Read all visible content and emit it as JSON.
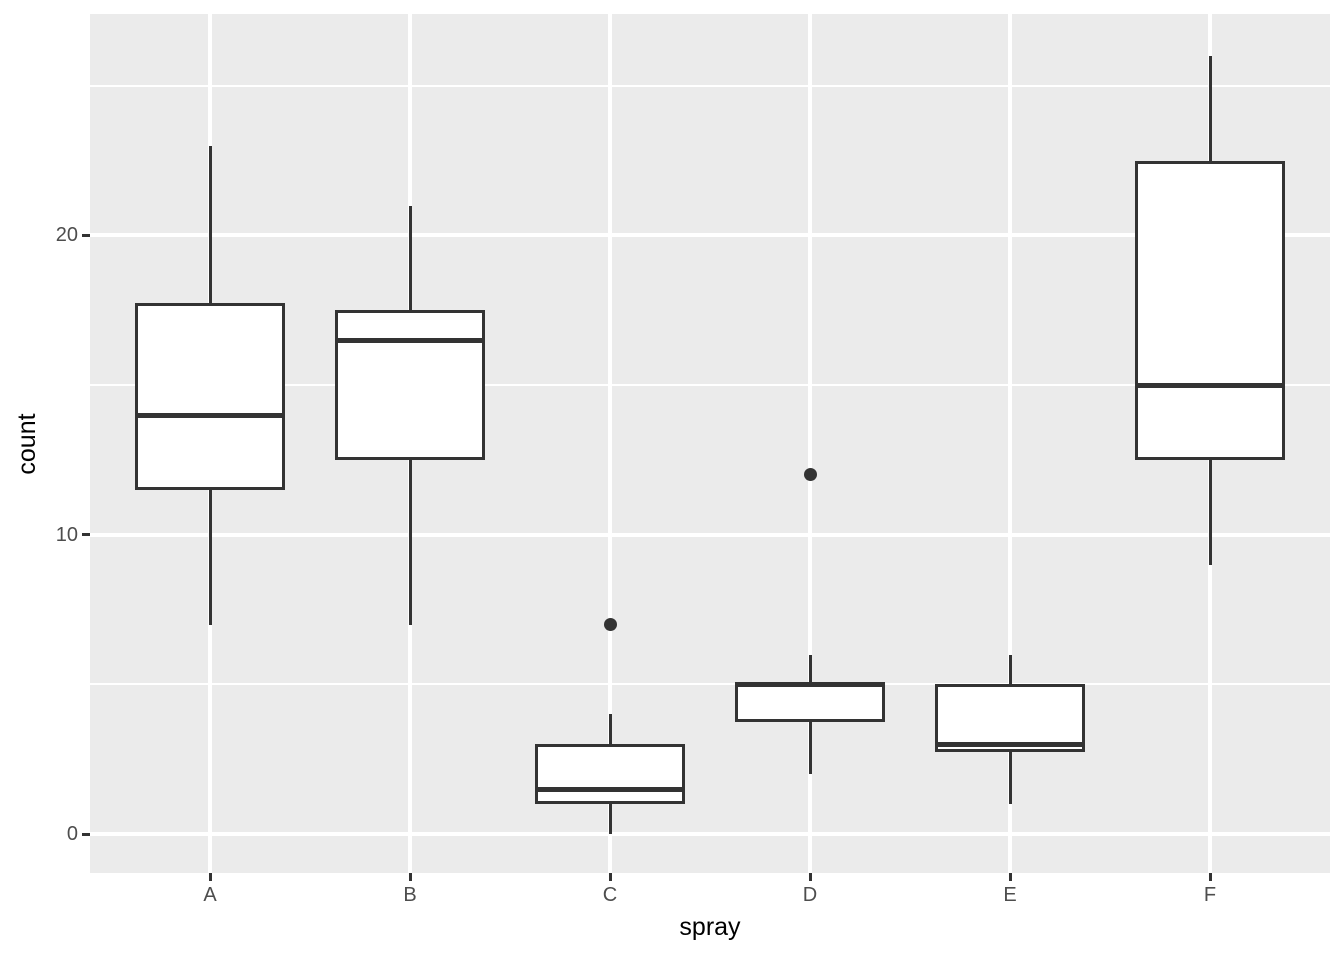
{
  "chart_data": {
    "type": "boxplot",
    "title": "",
    "xlabel": "spray",
    "ylabel": "count",
    "categories": [
      "A",
      "B",
      "C",
      "D",
      "E",
      "F"
    ],
    "series": [
      {
        "category": "A",
        "whisker_low": 7,
        "q1": 11.5,
        "median": 14,
        "q3": 17.75,
        "whisker_high": 23,
        "outliers": []
      },
      {
        "category": "B",
        "whisker_low": 7,
        "q1": 12.5,
        "median": 16.5,
        "q3": 17.5,
        "whisker_high": 21,
        "outliers": []
      },
      {
        "category": "C",
        "whisker_low": 0,
        "q1": 1,
        "median": 1.5,
        "q3": 3,
        "whisker_high": 4,
        "outliers": [
          7
        ]
      },
      {
        "category": "D",
        "whisker_low": 2,
        "q1": 3.75,
        "median": 5,
        "q3": 5,
        "whisker_high": 6,
        "outliers": [
          12
        ]
      },
      {
        "category": "E",
        "whisker_low": 1,
        "q1": 2.75,
        "median": 3,
        "q3": 5,
        "whisker_high": 6,
        "outliers": []
      },
      {
        "category": "F",
        "whisker_low": 9,
        "q1": 12.5,
        "median": 15,
        "q3": 22.5,
        "whisker_high": 26,
        "outliers": []
      }
    ],
    "y_major_ticks": [
      0,
      10,
      20
    ],
    "y_tick_labels": [
      "0",
      "10",
      "20"
    ],
    "y_minor_ticks": [
      5,
      15,
      25
    ],
    "ylim": [
      -1.3,
      27.4
    ],
    "xlim": [
      0.4,
      6.6
    ],
    "box_width_units": 0.75,
    "grid": "on",
    "legend": "none",
    "colors": {
      "panel_background": "#EBEBEB",
      "page_background": "#FFFFFF",
      "gridline": "#FFFFFF",
      "box_stroke": "#333333",
      "box_fill": "#FFFFFF",
      "tick_mark": "#333333",
      "tick_label": "#4D4D4D",
      "axis_title": "#000000"
    }
  }
}
